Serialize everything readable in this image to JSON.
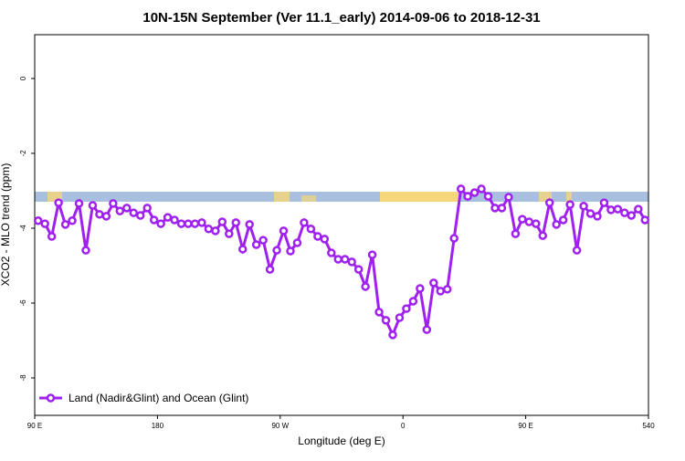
{
  "chart_data": {
    "type": "line",
    "title": "10N-15N September (Ver 11.1_early)   2014-09-06 to 2018-12-31",
    "x_label": "Longitude (deg E)",
    "y_label": "XCO2 - MLO trend (ppm)",
    "x": [
      92.5,
      97.5,
      102.5,
      107.5,
      112.5,
      117.5,
      122.5,
      127.5,
      132.5,
      137.5,
      142.5,
      147.5,
      152.5,
      157.5,
      162.5,
      167.5,
      172.5,
      177.5,
      182.5,
      187.5,
      192.5,
      197.5,
      202.5,
      207.5,
      212.5,
      217.5,
      222.5,
      227.5,
      232.5,
      237.5,
      242.5,
      247.5,
      252.5,
      257.5,
      262.5,
      267.5,
      272.5,
      277.5,
      282.5,
      287.5,
      292.5,
      297.5,
      302.5,
      307.5,
      312.5,
      317.5,
      322.5,
      327.5,
      332.5,
      337.5,
      342.5,
      347.5,
      352.5,
      357.5,
      362.5,
      367.5,
      372.5,
      377.5,
      382.5,
      387.5,
      392.5,
      397.5,
      402.5,
      407.5,
      412.5,
      417.5,
      422.5,
      427.5,
      432.5,
      437.5,
      442.5,
      447.5,
      452.5,
      457.5,
      462.5,
      467.5,
      472.5,
      477.5,
      482.5,
      487.5,
      492.5,
      497.5,
      502.5,
      507.5,
      512.5,
      517.5,
      522.5,
      527.5,
      532.5,
      537.5
    ],
    "series": [
      {
        "name": "Land (Nadir&Glint) and Ocean (Glint)",
        "color": "#a020f0",
        "values": [
          -3.8,
          -3.88,
          -4.22,
          -3.32,
          -3.9,
          -3.8,
          -3.34,
          -4.59,
          -3.39,
          -3.63,
          -3.68,
          -3.34,
          -3.54,
          -3.46,
          -3.59,
          -3.66,
          -3.46,
          -3.78,
          -3.88,
          -3.71,
          -3.78,
          -3.88,
          -3.88,
          -3.88,
          -3.85,
          -4.02,
          -4.07,
          -3.83,
          -4.15,
          -3.85,
          -4.56,
          -3.9,
          -4.44,
          -4.32,
          -5.1,
          -4.59,
          -4.07,
          -4.61,
          -4.39,
          -3.85,
          -4.02,
          -4.22,
          -4.29,
          -4.66,
          -4.83,
          -4.83,
          -4.9,
          -5.1,
          -5.56,
          -4.71,
          -6.24,
          -6.46,
          -6.85,
          -6.39,
          -6.15,
          -5.95,
          -5.61,
          -6.71,
          -5.46,
          -5.68,
          -5.63,
          -4.27,
          -2.95,
          -3.15,
          -3.05,
          -2.95,
          -3.15,
          -3.46,
          -3.46,
          -3.17,
          -4.15,
          -3.76,
          -3.83,
          -3.88,
          -4.2,
          -3.32,
          -3.9,
          -3.78,
          -3.37,
          -4.59,
          -3.41,
          -3.61,
          -3.68,
          -3.32,
          -3.51,
          -3.49,
          -3.59,
          -3.66,
          -3.49,
          -3.78
        ]
      }
    ],
    "xlim": [
      90,
      540
    ],
    "xticks": [
      {
        "value": 90,
        "label": "90 E"
      },
      180,
      {
        "value": 270,
        "label": "90 W"
      },
      {
        "value": 360,
        "label": "0"
      },
      {
        "value": 450,
        "label": "90 E"
      },
      540
    ],
    "ylim": [
      -9,
      1.17
    ],
    "yticks": [
      0,
      -2,
      -4,
      -6,
      -8
    ],
    "legend": "bottom-left"
  }
}
